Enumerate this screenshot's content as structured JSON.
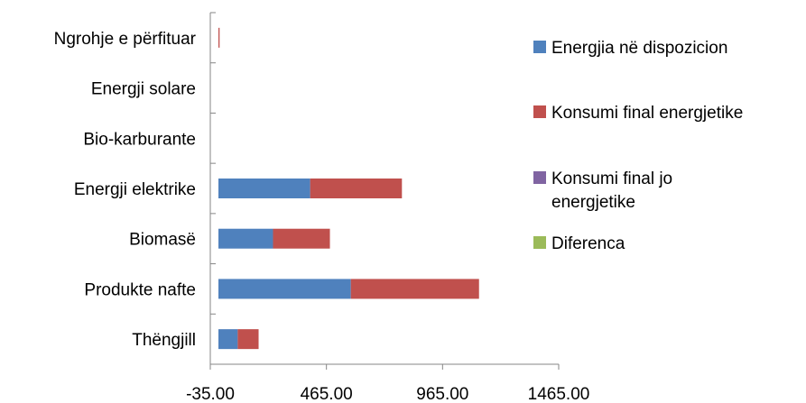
{
  "chart_data": {
    "type": "bar",
    "orientation": "horizontal",
    "stacked": true,
    "categories": [
      "Thëngjill",
      "Produkte nafte",
      "Biomasë",
      "Energji elektrike",
      "Bio-karburante",
      "Energji solare",
      "Ngrohje e përfituar"
    ],
    "series": [
      {
        "name": "Energjia në dispozicion",
        "color": "#4f81bd",
        "values": [
          83,
          570,
          235,
          395,
          0,
          0,
          0
        ]
      },
      {
        "name": "Konsumi final  energjetike",
        "color": "#c0504d",
        "values": [
          90,
          552,
          245,
          395,
          0,
          0,
          5
        ]
      },
      {
        "name": "Konsumi  final jo energjetike",
        "color": "#8064a2",
        "values": [
          0,
          0,
          0,
          0,
          0,
          0,
          0
        ]
      },
      {
        "name": "Diferenca",
        "color": "#9bbb59",
        "values": [
          0,
          0,
          0,
          0,
          0,
          0,
          0
        ]
      }
    ],
    "xlim": [
      -35,
      1465
    ],
    "xticks": [
      "-35.00",
      "465.00",
      "965.00",
      "1465.00"
    ],
    "xtick_values": [
      -35,
      465,
      965,
      1465
    ],
    "grid": false,
    "legend_position": "right"
  }
}
